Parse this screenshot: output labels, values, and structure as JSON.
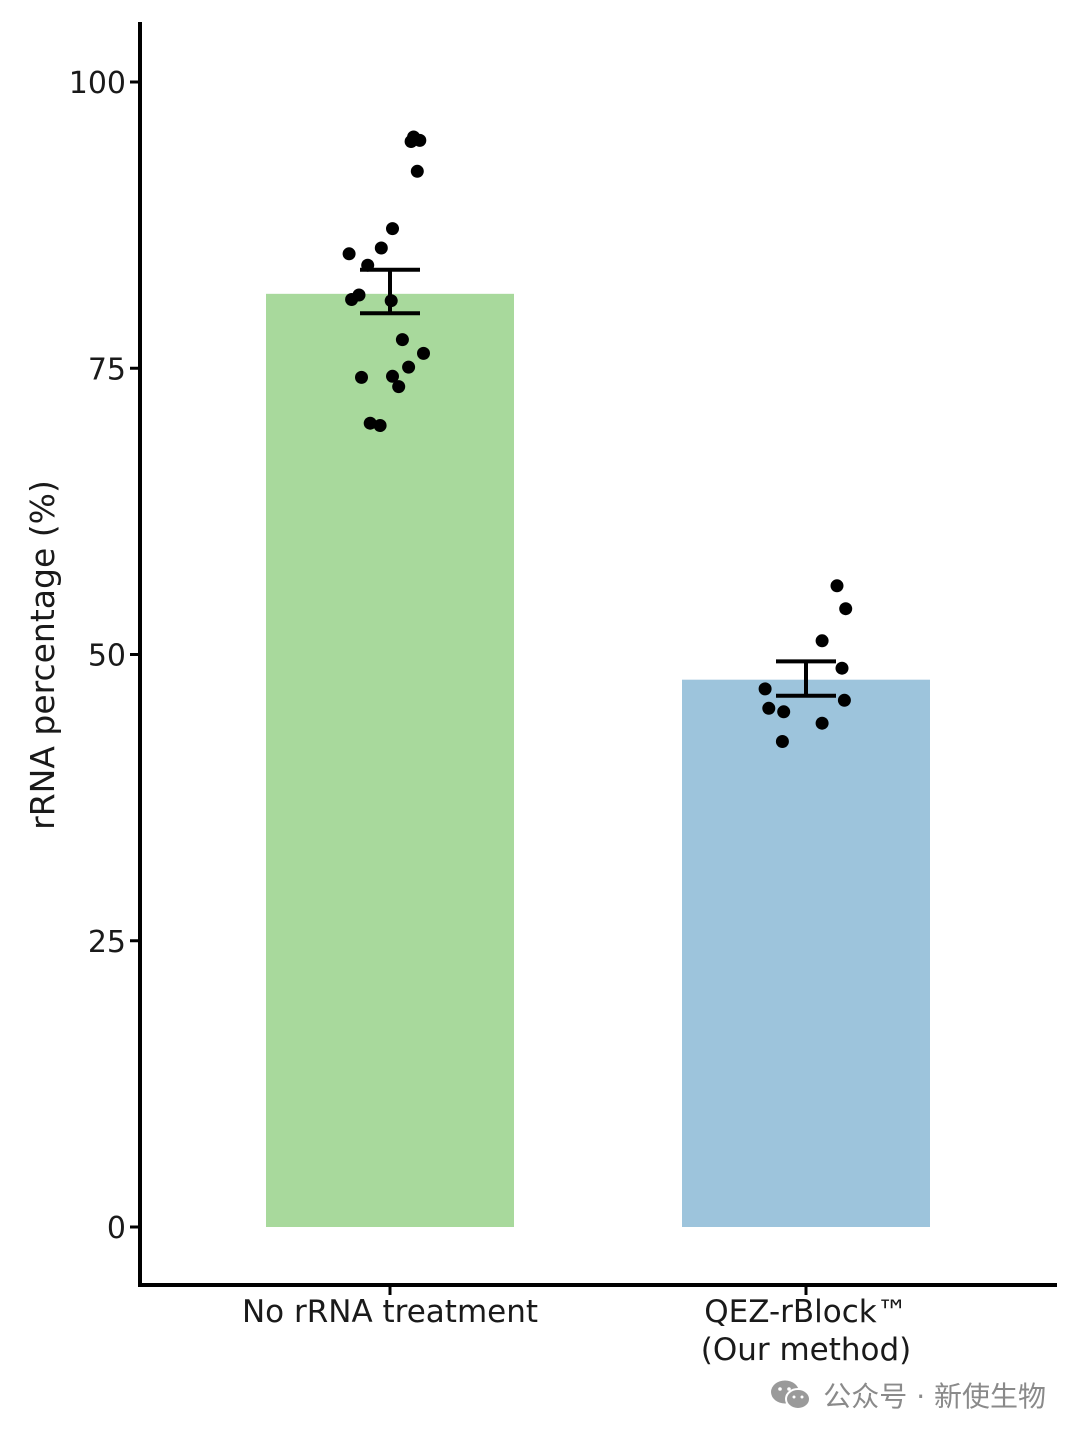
{
  "chart_data": {
    "type": "bar",
    "title": "",
    "xlabel": "",
    "ylabel": "rRNA percentage (%)",
    "ylim": [
      -5,
      105
    ],
    "yticks": [
      0,
      25,
      50,
      75,
      100
    ],
    "ytick_labels": [
      "0",
      "25",
      "50",
      "75",
      "100"
    ],
    "grid": false,
    "categories": [
      {
        "label_lines": [
          "No rRNA treatment"
        ]
      },
      {
        "label_lines": [
          "QEZ-rBlock™",
          "(Our method)"
        ]
      }
    ],
    "values": [
      81.5,
      47.8
    ],
    "error_low": [
      79.8,
      46.4
    ],
    "error_high": [
      83.6,
      49.4
    ],
    "colors": [
      "#a8d99c",
      "#9dc4dc"
    ],
    "points": [
      [
        85.0,
        81.0,
        81.4,
        84.0,
        74.2,
        70.2,
        70.0,
        85.5,
        80.9,
        87.2,
        74.3,
        73.4,
        77.5,
        75.1,
        76.3,
        94.8,
        95.2,
        94.9,
        92.2
      ],
      [
        47.0,
        45.3,
        45.0,
        42.4,
        51.2,
        44.0,
        56.0,
        54.0,
        48.8,
        46.0
      ]
    ],
    "jitter": [
      [
        -0.33,
        -0.31,
        -0.25,
        -0.18,
        -0.23,
        -0.16,
        -0.08,
        -0.07,
        0.01,
        0.02,
        0.02,
        0.07,
        0.1,
        0.15,
        0.27,
        0.17,
        0.19,
        0.24,
        0.22
      ],
      [
        -0.33,
        -0.3,
        -0.18,
        -0.19,
        0.13,
        0.13,
        0.25,
        0.32,
        0.29,
        0.31
      ]
    ]
  },
  "watermark": {
    "icon": "wechat-icon",
    "text": "公众号 · 新使生物"
  }
}
